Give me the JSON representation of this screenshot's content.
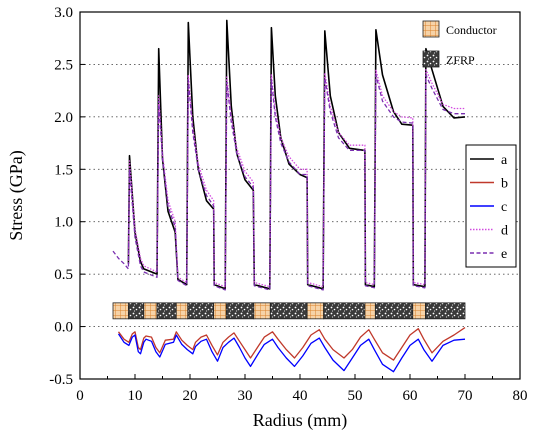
{
  "chart_data": {
    "type": "line",
    "xlabel": "Radius (mm)",
    "ylabel": "Stress (GPa)",
    "xlim": [
      0,
      80
    ],
    "ylim": [
      -0.5,
      3.0
    ],
    "xticks": [
      0,
      10,
      20,
      30,
      40,
      50,
      60,
      70,
      80
    ],
    "yticks": [
      -0.5,
      0.0,
      0.5,
      1.0,
      1.5,
      2.0,
      2.5,
      3.0
    ],
    "xtick_labels": [
      "0",
      "10",
      "20",
      "30",
      "40",
      "50",
      "60",
      "70",
      "80"
    ],
    "ytick_labels": [
      "-0.5",
      "0.0",
      "0.5",
      "1.0",
      "1.5",
      "2.0",
      "2.5",
      "3.0"
    ],
    "grid": "horizontal-dotted",
    "legend_position": "right",
    "series": [
      {
        "name": "a",
        "color": "#000000",
        "style": "solid",
        "points": [
          [
            8.8,
            0.6
          ],
          [
            9.0,
            1.63
          ],
          [
            10.0,
            0.9
          ],
          [
            11.0,
            0.62
          ],
          [
            11.6,
            0.55
          ],
          [
            14.0,
            0.5
          ],
          [
            14.3,
            2.65
          ],
          [
            15.0,
            1.6
          ],
          [
            16.0,
            1.1
          ],
          [
            17.3,
            0.9
          ],
          [
            17.8,
            0.45
          ],
          [
            19.4,
            0.4
          ],
          [
            19.7,
            2.9
          ],
          [
            20.5,
            2.0
          ],
          [
            21.5,
            1.5
          ],
          [
            23.0,
            1.2
          ],
          [
            24.3,
            1.12
          ],
          [
            24.4,
            0.4
          ],
          [
            26.4,
            0.36
          ],
          [
            26.7,
            2.92
          ],
          [
            27.5,
            2.1
          ],
          [
            28.5,
            1.65
          ],
          [
            30.0,
            1.4
          ],
          [
            31.5,
            1.3
          ],
          [
            31.7,
            0.4
          ],
          [
            34.5,
            0.36
          ],
          [
            34.8,
            2.85
          ],
          [
            35.5,
            2.2
          ],
          [
            36.5,
            1.8
          ],
          [
            38.0,
            1.55
          ],
          [
            40.0,
            1.45
          ],
          [
            41.3,
            1.42
          ],
          [
            41.4,
            0.4
          ],
          [
            44.2,
            0.36
          ],
          [
            44.5,
            2.82
          ],
          [
            45.5,
            2.2
          ],
          [
            47.0,
            1.85
          ],
          [
            49.0,
            1.7
          ],
          [
            51.8,
            1.68
          ],
          [
            51.9,
            0.4
          ],
          [
            53.5,
            0.38
          ],
          [
            53.8,
            2.83
          ],
          [
            55.0,
            2.4
          ],
          [
            57.0,
            2.05
          ],
          [
            58.5,
            1.93
          ],
          [
            60.5,
            1.92
          ],
          [
            60.6,
            0.4
          ],
          [
            62.7,
            0.38
          ],
          [
            62.9,
            2.65
          ],
          [
            64.0,
            2.45
          ],
          [
            66.0,
            2.1
          ],
          [
            68.0,
            1.99
          ],
          [
            70.0,
            2.0
          ]
        ]
      },
      {
        "name": "b",
        "color": "#c0392b",
        "style": "solid",
        "points": [
          [
            7.0,
            -0.05
          ],
          [
            8.0,
            -0.12
          ],
          [
            8.9,
            -0.15
          ],
          [
            9.5,
            -0.07
          ],
          [
            10.0,
            -0.05
          ],
          [
            10.6,
            -0.2
          ],
          [
            11.0,
            -0.22
          ],
          [
            11.6,
            -0.11
          ],
          [
            12.0,
            -0.09
          ],
          [
            13.0,
            -0.1
          ],
          [
            13.8,
            -0.2
          ],
          [
            14.5,
            -0.25
          ],
          [
            15.5,
            -0.13
          ],
          [
            17.0,
            -0.12
          ],
          [
            17.5,
            -0.05
          ],
          [
            18.5,
            -0.13
          ],
          [
            19.5,
            -0.18
          ],
          [
            20.5,
            -0.22
          ],
          [
            21.0,
            -0.15
          ],
          [
            22.0,
            -0.1
          ],
          [
            23.0,
            -0.08
          ],
          [
            24.0,
            -0.18
          ],
          [
            25.0,
            -0.27
          ],
          [
            26.0,
            -0.15
          ],
          [
            27.0,
            -0.1
          ],
          [
            28.0,
            -0.06
          ],
          [
            29.0,
            -0.14
          ],
          [
            30.0,
            -0.22
          ],
          [
            31.0,
            -0.3
          ],
          [
            32.5,
            -0.18
          ],
          [
            33.5,
            -0.1
          ],
          [
            35.0,
            -0.05
          ],
          [
            36.0,
            -0.12
          ],
          [
            37.5,
            -0.22
          ],
          [
            39.0,
            -0.3
          ],
          [
            40.5,
            -0.2
          ],
          [
            42.0,
            -0.08
          ],
          [
            43.5,
            -0.03
          ],
          [
            44.5,
            -0.12
          ],
          [
            46.0,
            -0.22
          ],
          [
            48.0,
            -0.3
          ],
          [
            49.5,
            -0.22
          ],
          [
            51.0,
            -0.1
          ],
          [
            52.5,
            -0.03
          ],
          [
            53.5,
            -0.12
          ],
          [
            55.0,
            -0.25
          ],
          [
            57.0,
            -0.32
          ],
          [
            58.5,
            -0.2
          ],
          [
            60.0,
            -0.08
          ],
          [
            61.5,
            -0.02
          ],
          [
            62.5,
            -0.12
          ],
          [
            64.0,
            -0.25
          ],
          [
            66.0,
            -0.14
          ],
          [
            68.0,
            -0.08
          ],
          [
            70.0,
            -0.01
          ]
        ]
      },
      {
        "name": "c",
        "color": "#0000ff",
        "style": "solid",
        "points": [
          [
            7.0,
            -0.07
          ],
          [
            8.0,
            -0.15
          ],
          [
            8.9,
            -0.18
          ],
          [
            9.5,
            -0.1
          ],
          [
            10.0,
            -0.08
          ],
          [
            10.6,
            -0.24
          ],
          [
            11.0,
            -0.26
          ],
          [
            11.6,
            -0.15
          ],
          [
            12.0,
            -0.12
          ],
          [
            13.0,
            -0.14
          ],
          [
            13.8,
            -0.24
          ],
          [
            14.5,
            -0.29
          ],
          [
            15.5,
            -0.17
          ],
          [
            17.0,
            -0.15
          ],
          [
            17.5,
            -0.08
          ],
          [
            18.5,
            -0.17
          ],
          [
            19.5,
            -0.22
          ],
          [
            20.5,
            -0.26
          ],
          [
            21.0,
            -0.19
          ],
          [
            22.0,
            -0.14
          ],
          [
            23.0,
            -0.12
          ],
          [
            24.0,
            -0.24
          ],
          [
            25.0,
            -0.33
          ],
          [
            26.0,
            -0.2
          ],
          [
            27.0,
            -0.15
          ],
          [
            28.0,
            -0.11
          ],
          [
            29.0,
            -0.2
          ],
          [
            30.0,
            -0.3
          ],
          [
            31.0,
            -0.38
          ],
          [
            32.5,
            -0.25
          ],
          [
            33.5,
            -0.17
          ],
          [
            35.0,
            -0.12
          ],
          [
            36.0,
            -0.2
          ],
          [
            37.5,
            -0.3
          ],
          [
            39.0,
            -0.38
          ],
          [
            40.5,
            -0.28
          ],
          [
            42.0,
            -0.16
          ],
          [
            43.5,
            -0.11
          ],
          [
            44.5,
            -0.2
          ],
          [
            46.0,
            -0.32
          ],
          [
            48.0,
            -0.42
          ],
          [
            49.5,
            -0.3
          ],
          [
            51.0,
            -0.18
          ],
          [
            52.5,
            -0.12
          ],
          [
            53.5,
            -0.22
          ],
          [
            55.0,
            -0.36
          ],
          [
            57.0,
            -0.43
          ],
          [
            58.5,
            -0.3
          ],
          [
            60.0,
            -0.18
          ],
          [
            61.5,
            -0.12
          ],
          [
            62.5,
            -0.22
          ],
          [
            64.0,
            -0.33
          ],
          [
            66.0,
            -0.18
          ],
          [
            68.0,
            -0.13
          ],
          [
            70.0,
            -0.12
          ]
        ]
      },
      {
        "name": "d",
        "color": "#d24be0",
        "style": "dotted",
        "points": [
          [
            8.8,
            0.6
          ],
          [
            9.0,
            1.58
          ],
          [
            10.0,
            0.93
          ],
          [
            11.0,
            0.65
          ],
          [
            11.6,
            0.58
          ],
          [
            14.0,
            0.52
          ],
          [
            14.3,
            2.2
          ],
          [
            15.0,
            1.65
          ],
          [
            16.0,
            1.2
          ],
          [
            17.3,
            1.0
          ],
          [
            17.8,
            0.47
          ],
          [
            19.4,
            0.42
          ],
          [
            19.7,
            2.4
          ],
          [
            20.5,
            1.9
          ],
          [
            21.5,
            1.55
          ],
          [
            23.0,
            1.3
          ],
          [
            24.3,
            1.2
          ],
          [
            24.4,
            0.42
          ],
          [
            26.4,
            0.38
          ],
          [
            26.7,
            2.38
          ],
          [
            27.5,
            2.0
          ],
          [
            28.5,
            1.7
          ],
          [
            30.0,
            1.48
          ],
          [
            31.5,
            1.38
          ],
          [
            31.7,
            0.42
          ],
          [
            34.5,
            0.38
          ],
          [
            34.8,
            2.4
          ],
          [
            35.5,
            2.05
          ],
          [
            36.5,
            1.8
          ],
          [
            38.0,
            1.62
          ],
          [
            40.0,
            1.5
          ],
          [
            41.3,
            1.5
          ],
          [
            41.4,
            0.42
          ],
          [
            44.2,
            0.38
          ],
          [
            44.5,
            2.42
          ],
          [
            45.5,
            2.1
          ],
          [
            47.0,
            1.85
          ],
          [
            49.0,
            1.73
          ],
          [
            51.8,
            1.73
          ],
          [
            51.9,
            0.42
          ],
          [
            53.5,
            0.4
          ],
          [
            53.8,
            2.45
          ],
          [
            55.0,
            2.2
          ],
          [
            57.0,
            2.05
          ],
          [
            58.5,
            2.0
          ],
          [
            60.5,
            1.99
          ],
          [
            60.6,
            0.42
          ],
          [
            62.7,
            0.4
          ],
          [
            62.9,
            2.45
          ],
          [
            64.0,
            2.32
          ],
          [
            66.0,
            2.12
          ],
          [
            68.0,
            2.08
          ],
          [
            70.0,
            2.08
          ]
        ]
      },
      {
        "name": "e",
        "color": "#7a2fb0",
        "style": "dashed",
        "points": [
          [
            6.0,
            0.72
          ],
          [
            7.0,
            0.65
          ],
          [
            8.0,
            0.6
          ],
          [
            8.8,
            0.55
          ],
          [
            9.0,
            1.5
          ],
          [
            10.0,
            0.85
          ],
          [
            11.0,
            0.58
          ],
          [
            11.6,
            0.52
          ],
          [
            14.0,
            0.47
          ],
          [
            14.3,
            2.15
          ],
          [
            15.0,
            1.6
          ],
          [
            16.0,
            1.15
          ],
          [
            17.3,
            0.95
          ],
          [
            17.8,
            0.44
          ],
          [
            19.4,
            0.39
          ],
          [
            19.7,
            2.35
          ],
          [
            20.5,
            1.85
          ],
          [
            21.5,
            1.5
          ],
          [
            23.0,
            1.25
          ],
          [
            24.3,
            1.15
          ],
          [
            24.4,
            0.39
          ],
          [
            26.4,
            0.35
          ],
          [
            26.7,
            2.33
          ],
          [
            27.5,
            1.95
          ],
          [
            28.5,
            1.65
          ],
          [
            30.0,
            1.43
          ],
          [
            31.5,
            1.33
          ],
          [
            31.7,
            0.39
          ],
          [
            34.5,
            0.35
          ],
          [
            34.8,
            2.35
          ],
          [
            35.5,
            2.0
          ],
          [
            36.5,
            1.75
          ],
          [
            38.0,
            1.57
          ],
          [
            40.0,
            1.45
          ],
          [
            41.3,
            1.45
          ],
          [
            41.4,
            0.39
          ],
          [
            44.2,
            0.35
          ],
          [
            44.5,
            2.37
          ],
          [
            45.5,
            2.05
          ],
          [
            47.0,
            1.8
          ],
          [
            49.0,
            1.68
          ],
          [
            51.8,
            1.68
          ],
          [
            51.9,
            0.39
          ],
          [
            53.5,
            0.37
          ],
          [
            53.8,
            2.4
          ],
          [
            55.0,
            2.15
          ],
          [
            57.0,
            2.0
          ],
          [
            58.5,
            1.95
          ],
          [
            60.5,
            1.94
          ],
          [
            60.6,
            0.39
          ],
          [
            62.7,
            0.37
          ],
          [
            62.9,
            2.4
          ],
          [
            64.0,
            2.27
          ],
          [
            66.0,
            2.07
          ],
          [
            68.0,
            2.03
          ],
          [
            70.0,
            2.03
          ]
        ]
      }
    ],
    "materials_legend": [
      {
        "name": "Conductor",
        "pattern": "grid",
        "color": "#e89d4a"
      },
      {
        "name": "ZFRP",
        "pattern": "speckle",
        "color": "#555555"
      }
    ],
    "material_bar": {
      "y": 0.15,
      "segments": [
        {
          "material": "Conductor",
          "x0": 6.0,
          "x1": 8.8
        },
        {
          "material": "ZFRP",
          "x0": 8.8,
          "x1": 11.6
        },
        {
          "material": "Conductor",
          "x0": 11.6,
          "x1": 14.0
        },
        {
          "material": "ZFRP",
          "x0": 14.0,
          "x1": 17.5
        },
        {
          "material": "Conductor",
          "x0": 17.5,
          "x1": 19.6
        },
        {
          "material": "ZFRP",
          "x0": 19.6,
          "x1": 24.3
        },
        {
          "material": "Conductor",
          "x0": 24.3,
          "x1": 26.6
        },
        {
          "material": "ZFRP",
          "x0": 26.6,
          "x1": 31.6
        },
        {
          "material": "Conductor",
          "x0": 31.6,
          "x1": 34.6
        },
        {
          "material": "ZFRP",
          "x0": 34.6,
          "x1": 41.3
        },
        {
          "material": "Conductor",
          "x0": 41.3,
          "x1": 44.3
        },
        {
          "material": "ZFRP",
          "x0": 44.3,
          "x1": 51.8
        },
        {
          "material": "Conductor",
          "x0": 51.8,
          "x1": 53.7
        },
        {
          "material": "ZFRP",
          "x0": 53.7,
          "x1": 60.5
        },
        {
          "material": "Conductor",
          "x0": 60.5,
          "x1": 62.8
        },
        {
          "material": "ZFRP",
          "x0": 62.8,
          "x1": 70.0
        }
      ]
    }
  }
}
